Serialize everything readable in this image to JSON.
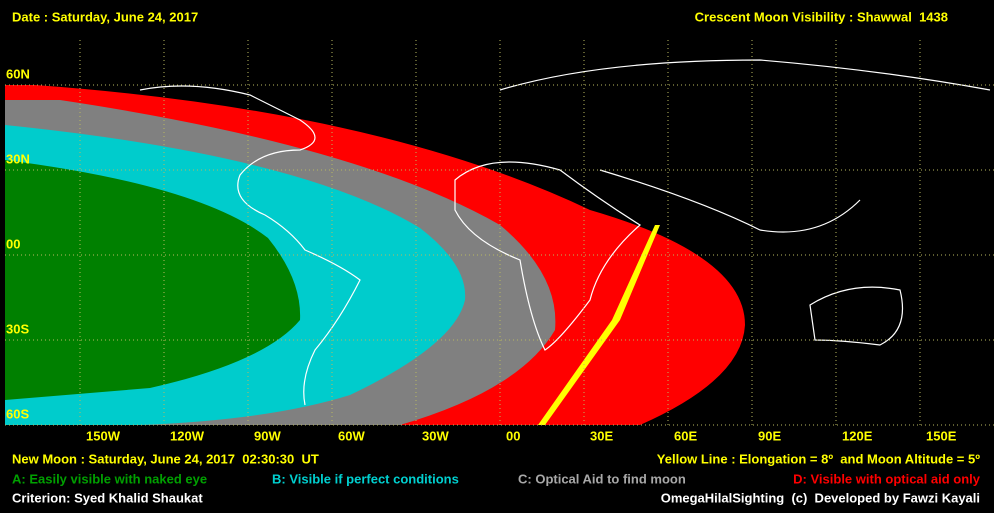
{
  "header": {
    "date": "Date : Saturday, June 24, 2017",
    "title": "Crescent Moon Visibility : Shawwal  1438"
  },
  "map": {
    "latitude_labels": [
      "60N",
      "30N",
      "00",
      "30S",
      "60S"
    ],
    "longitude_labels": [
      "150W",
      "120W",
      "90W",
      "60W",
      "30W",
      "00",
      "30E",
      "60E",
      "90E",
      "120E",
      "150E"
    ]
  },
  "footer": {
    "new_moon": "New Moon : Saturday, June 24, 2017  02:30:30  UT",
    "yellow_line": "Yellow Line : Elongation = 8º  and Moon Altitude = 5º",
    "legend": [
      "A: Easily visible with naked eye",
      "B: Visible if perfect conditions",
      "C: Optical Aid to find moon",
      "D: Visible with optical aid only"
    ],
    "criterion": "Criterion: Syed Khalid Shaukat",
    "credit": "OmegaHilalSighting  (c)  Developed by Fawzi Kayali"
  }
}
